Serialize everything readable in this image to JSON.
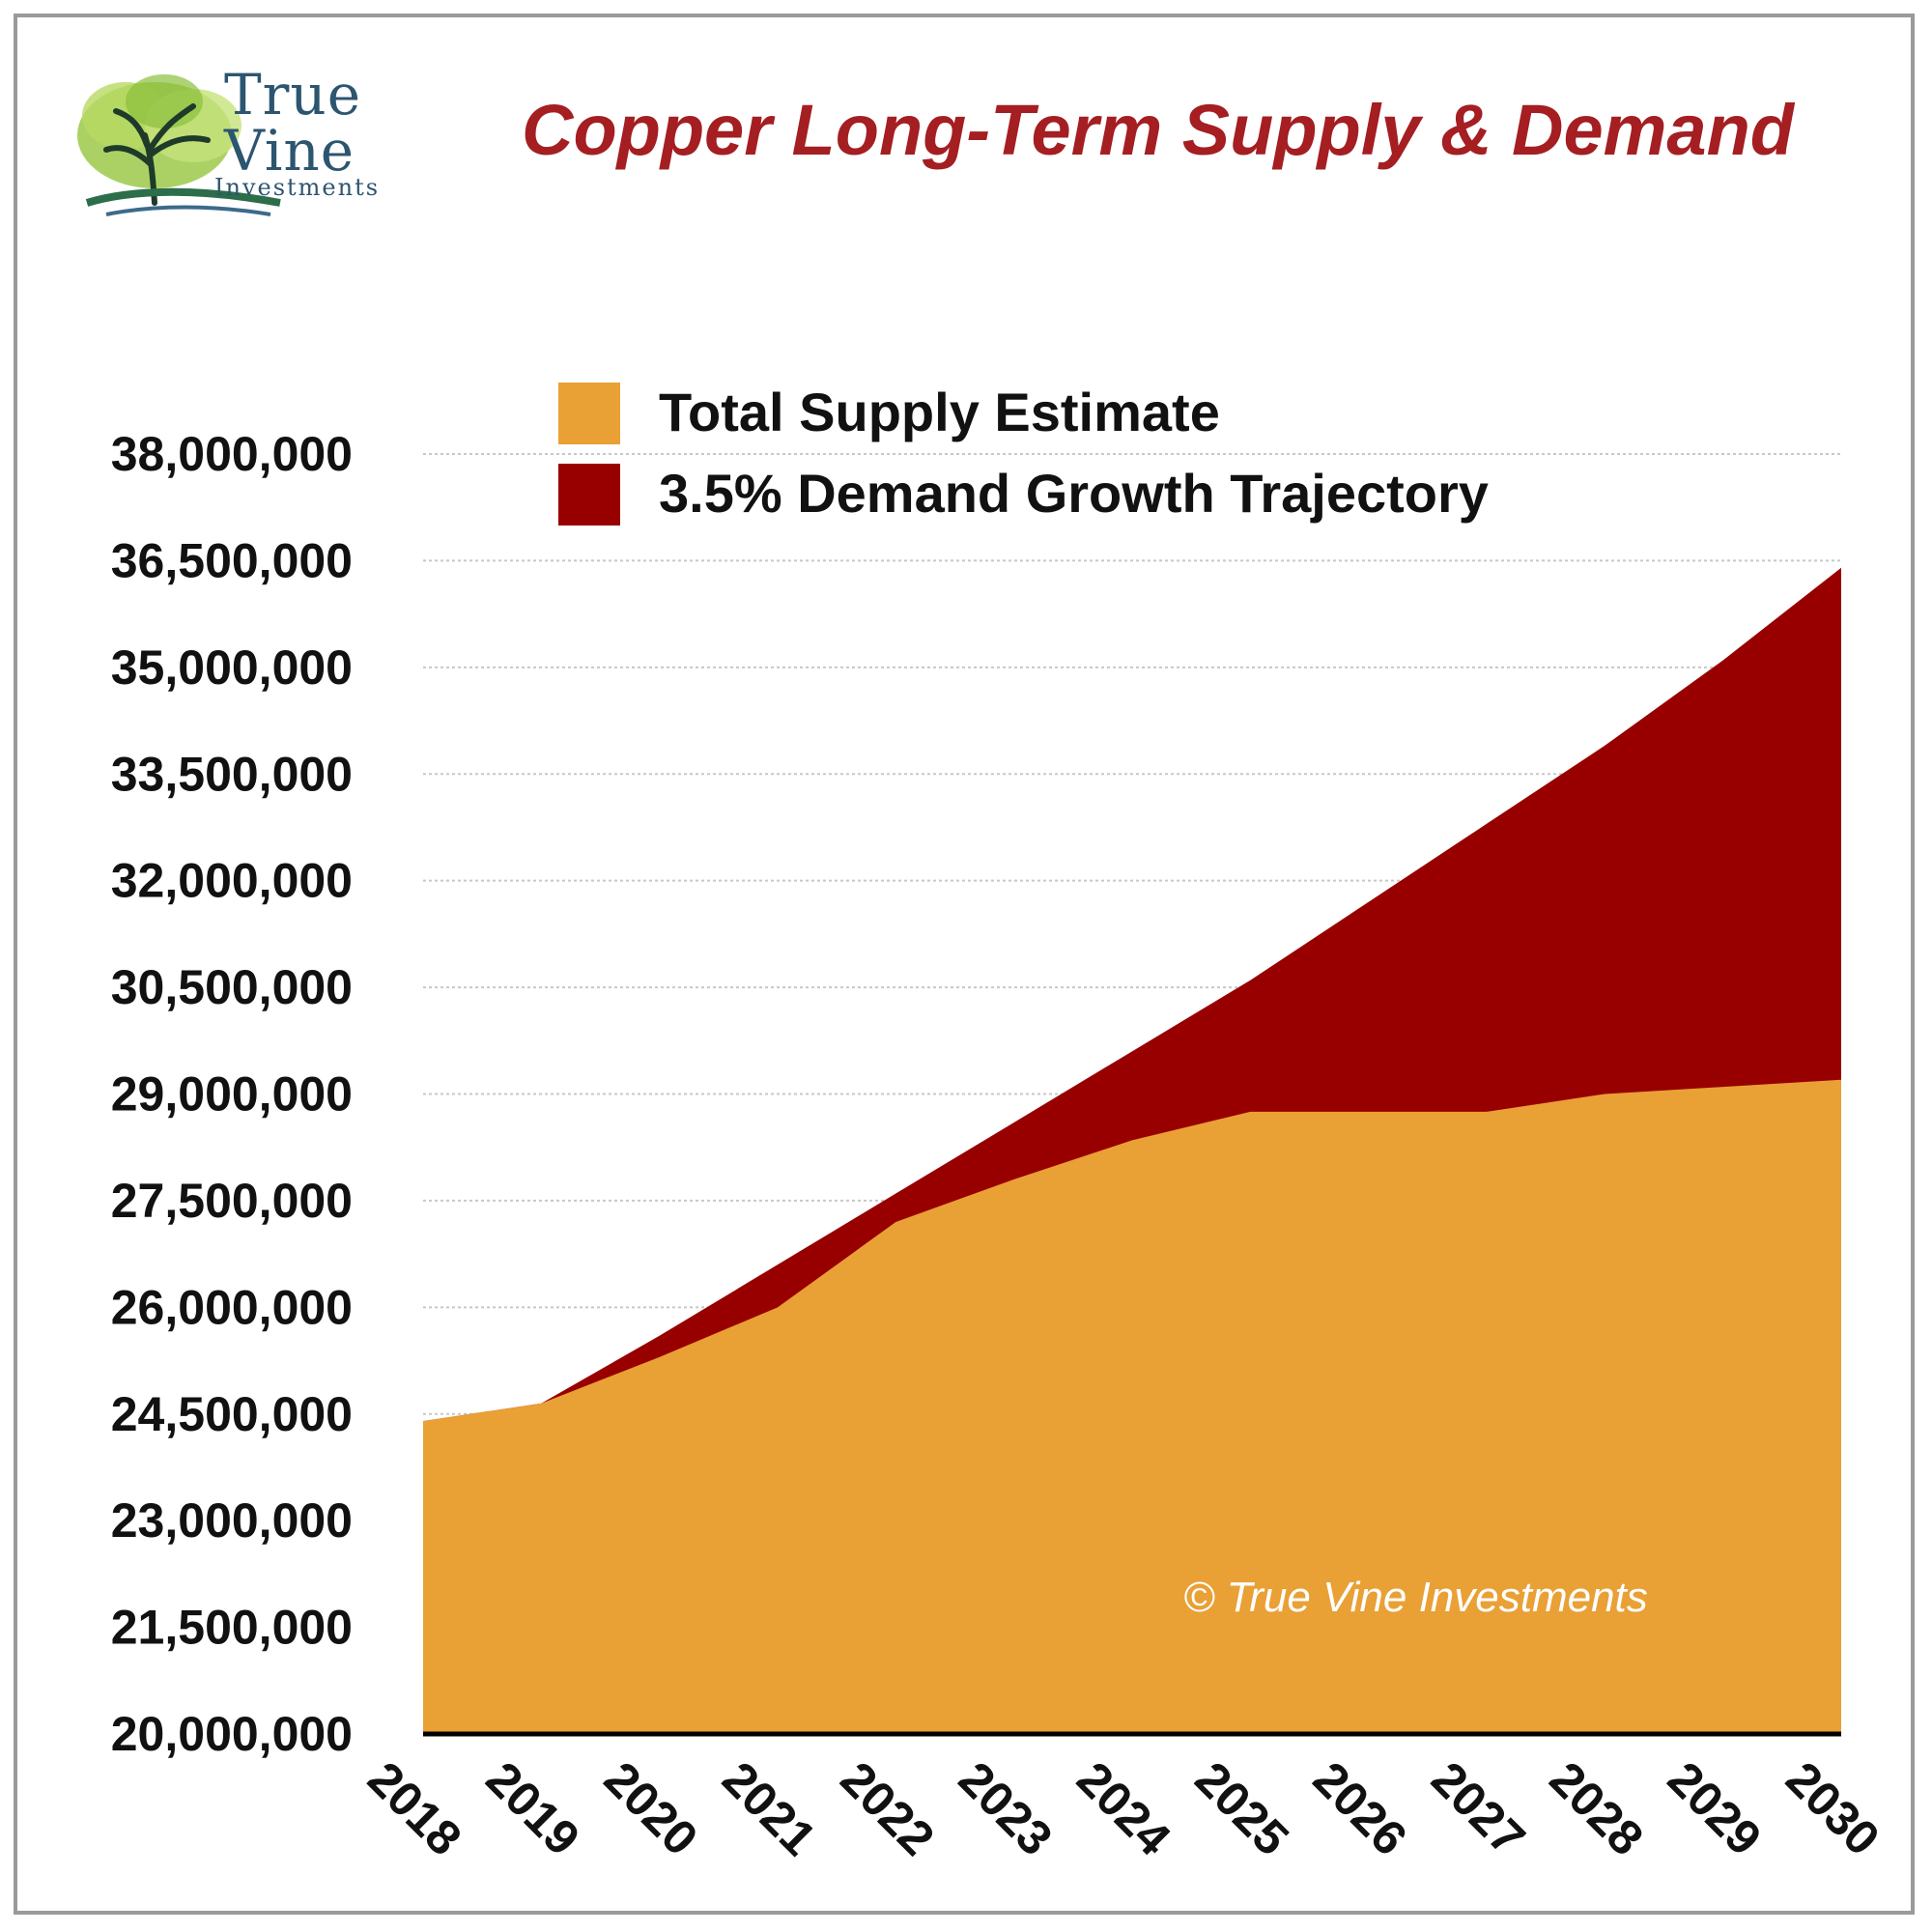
{
  "logo": {
    "line1": "True",
    "line2": "Vine",
    "line3": "Investments"
  },
  "title": "Copper Long-Term Supply & Demand",
  "watermark": "© True Vine Investments",
  "colors": {
    "supply": "#e9a035",
    "demand": "#980000",
    "title": "#a41e22"
  },
  "chart_data": {
    "type": "area",
    "title": "Copper Long-Term Supply & Demand",
    "xlabel": "",
    "ylabel": "",
    "x": [
      "2018",
      "2019",
      "2020",
      "2021",
      "2022",
      "2023",
      "2024",
      "2025",
      "2026",
      "2027",
      "2028",
      "2029",
      "2030"
    ],
    "series": [
      {
        "name": "Total Supply Estimate",
        "color": "#e9a035",
        "values": [
          24400000,
          24650000,
          25300000,
          26000000,
          27200000,
          27800000,
          28350000,
          28750000,
          28750000,
          28750000,
          29000000,
          29100000,
          29200000
        ]
      },
      {
        "name": "3.5% Demand Growth Trajectory",
        "color": "#980000",
        "values": [
          24400000,
          24650000,
          25600000,
          26600000,
          27600000,
          28600000,
          29600000,
          30600000,
          31700000,
          32800000,
          33900000,
          35100000,
          36400000
        ]
      }
    ],
    "yticks": [
      "20,000,000",
      "21,500,000",
      "23,000,000",
      "24,500,000",
      "26,000,000",
      "27,500,000",
      "29,000,000",
      "30,500,000",
      "32,000,000",
      "33,500,000",
      "35,000,000",
      "36,500,000",
      "38,000,000"
    ],
    "ylim": [
      20000000,
      38000000
    ],
    "grid": true,
    "legend_position": "top-left"
  }
}
